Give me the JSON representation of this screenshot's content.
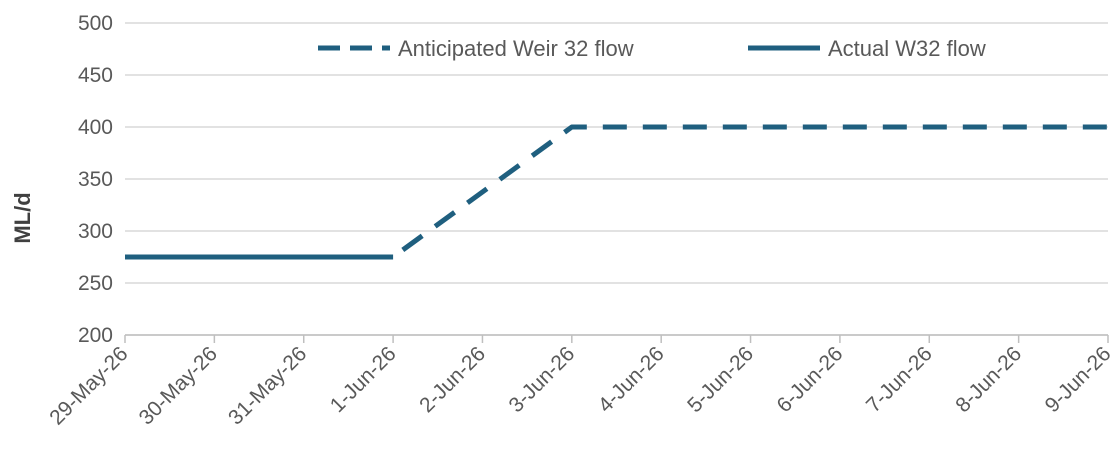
{
  "chart_data": {
    "type": "line",
    "ylabel": "ML/d",
    "ylim": [
      200,
      500
    ],
    "yticks": [
      "200",
      "250",
      "300",
      "350",
      "400",
      "450",
      "500"
    ],
    "categories": [
      "29-May-26",
      "30-May-26",
      "31-May-26",
      "1-Jun-26",
      "2-Jun-26",
      "3-Jun-26",
      "4-Jun-26",
      "5-Jun-26",
      "6-Jun-26",
      "7-Jun-26",
      "8-Jun-26",
      "9-Jun-26"
    ],
    "grid": true,
    "legend_position": "top-right",
    "series": [
      {
        "name": "Anticipated Weir 32 flow",
        "style": "dashed",
        "color": "#1f5f7f",
        "points": [
          {
            "x": "1-Jun-26",
            "y": 275
          },
          {
            "x": "3-Jun-26",
            "y": 400
          },
          {
            "x": "9-Jun-26",
            "y": 400
          }
        ]
      },
      {
        "name": "Actual W32 flow",
        "style": "solid",
        "color": "#1f5f7f",
        "points": [
          {
            "x": "29-May-26",
            "y": 275
          },
          {
            "x": "1-Jun-26",
            "y": 275
          }
        ]
      }
    ]
  }
}
